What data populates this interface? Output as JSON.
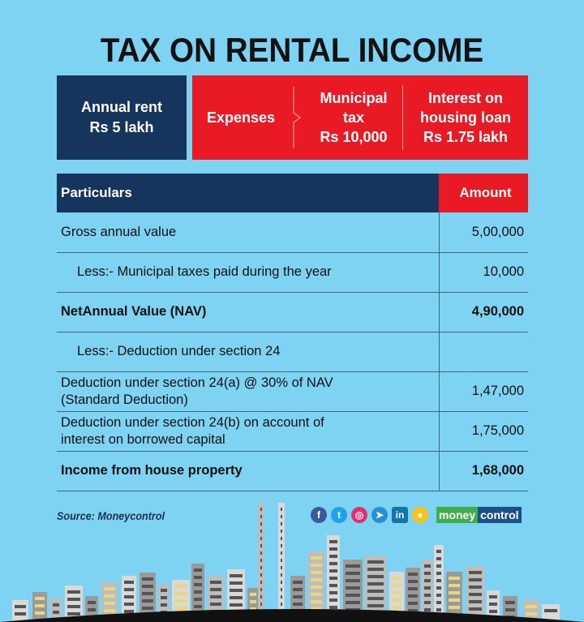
{
  "title": "TAX ON RENTAL INCOME",
  "summary": {
    "annual_rent": [
      "Annual rent",
      "Rs 5 lakh"
    ],
    "expenses_label": "Expenses",
    "municipal_tax": [
      "Municipal",
      "tax",
      "Rs 10,000"
    ],
    "interest": [
      "Interest on",
      "housing loan",
      "Rs 1.75 lakh"
    ]
  },
  "table": {
    "headers": [
      "Particulars",
      "Amount"
    ],
    "rows": [
      {
        "label": "Gross annual value",
        "amount": "5,00,000"
      },
      {
        "label": "Less:- Municipal taxes paid during the year",
        "amount": "10,000"
      },
      {
        "label": "NetAnnual Value (NAV)",
        "amount": "4,90,000"
      },
      {
        "label": "Less:- Deduction under section 24",
        "amount": ""
      },
      {
        "label": "Deduction under section 24(a) @ 30% of NAV (Standard Deduction)",
        "amount": "1,47,000"
      },
      {
        "label": "Deduction under section 24(b) on account of interest on borrowed capital",
        "amount": "1,75,000"
      },
      {
        "label": "Income from house property",
        "amount": "1,68,000"
      }
    ]
  },
  "footer": {
    "source": "Source: Moneycontrol",
    "social_icons": [
      "facebook-icon",
      "twitter-icon",
      "instagram-icon",
      "telegram-icon",
      "linkedin-icon",
      "koo-icon"
    ],
    "logo": [
      "money",
      "control"
    ]
  },
  "colors": {
    "background": "#7ed2f2",
    "navy": "#15355c",
    "red": "#ea1a25"
  }
}
